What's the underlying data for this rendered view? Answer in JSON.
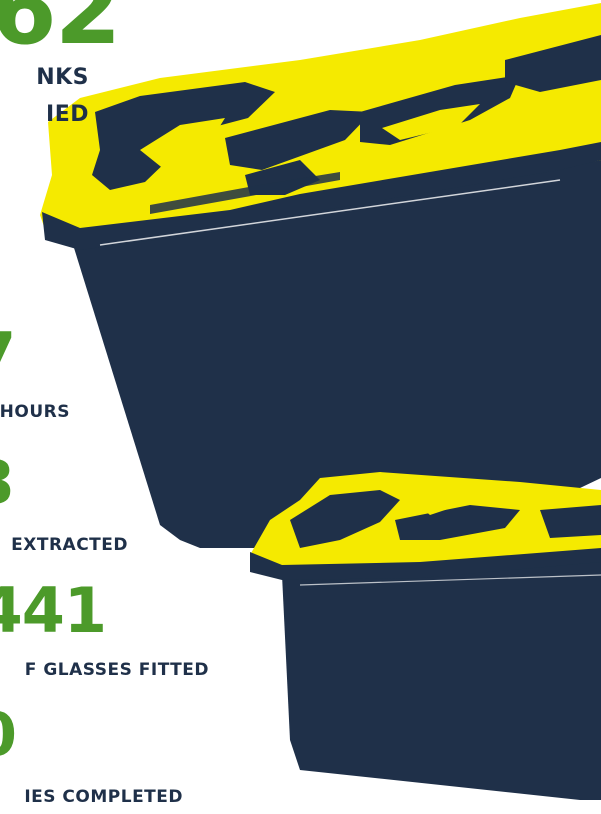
{
  "colors": {
    "number_green": "#4c9a2a",
    "label_navy": "#1f3049",
    "crate_body": "#1f3049",
    "crate_lid": "#f5ea00"
  },
  "hero": {
    "number": "62",
    "label_line1": "NKS",
    "label_line2": "IED"
  },
  "stats": {
    "hours": {
      "number": "7",
      "label": "HOURS"
    },
    "extracted": {
      "number": "8",
      "label": "EXTRACTED"
    },
    "glasses": {
      "number": "441",
      "label": "F GLASSES FITTED"
    },
    "surgeries": {
      "number": "0",
      "label": "IES COMPLETED"
    }
  },
  "illustration": {
    "icon_large": "crate-large-icon",
    "icon_small": "crate-small-icon"
  }
}
